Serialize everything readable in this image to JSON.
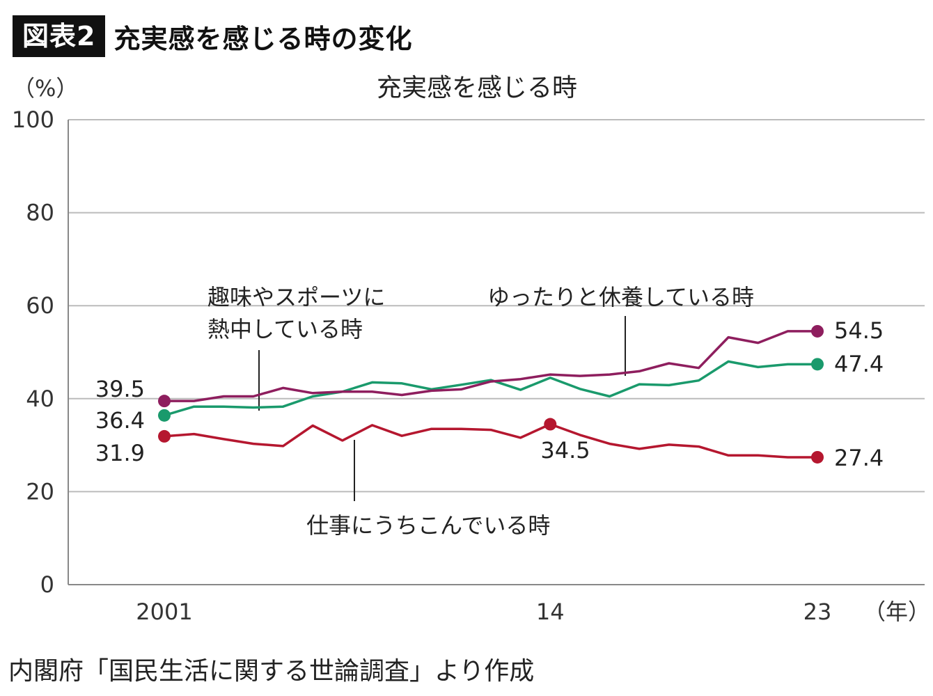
{
  "header": {
    "badge": "図表2",
    "title": "充実感を感じる時の変化"
  },
  "source": "内閣府「国民生活に関する世論調査」より作成",
  "chart_data": {
    "type": "line",
    "title": "充実感を感じる時",
    "ylabel": "（%）",
    "xlabel": "（年）",
    "ylim": [
      0,
      100
    ],
    "yticks": [
      "0",
      "20",
      "40",
      "60",
      "80",
      "100"
    ],
    "x_tick_labels": [
      "2001",
      "14",
      "23"
    ],
    "x_range": [
      2001,
      2023
    ],
    "grid": true,
    "colors": {
      "hobby": "#1a9a6c",
      "relax": "#8e1e5e",
      "work": "#b5172f"
    },
    "series": [
      {
        "key": "relax",
        "name": "ゆったりと休養している時",
        "x": [
          2001,
          2002,
          2003,
          2004,
          2005,
          2006,
          2007,
          2008,
          2009,
          2010,
          2011,
          2012,
          2013,
          2014,
          2015,
          2016,
          2017,
          2018,
          2019,
          2020,
          2021,
          2022,
          2023
        ],
        "values": [
          39.5,
          39.5,
          40.5,
          40.5,
          42.3,
          41.2,
          41.5,
          41.5,
          40.8,
          41.7,
          42.0,
          43.7,
          44.2,
          45.2,
          44.9,
          45.2,
          45.9,
          47.6,
          46.6,
          53.2,
          52.0,
          54.5,
          54.5
        ],
        "markers": [
          {
            "index": 0,
            "label": "39.5"
          },
          {
            "index": 22,
            "label": "54.5"
          }
        ]
      },
      {
        "key": "hobby",
        "name": "趣味やスポーツに熱中している時",
        "x": [
          2001,
          2002,
          2003,
          2004,
          2005,
          2006,
          2007,
          2008,
          2009,
          2010,
          2011,
          2012,
          2013,
          2014,
          2015,
          2016,
          2017,
          2018,
          2019,
          2020,
          2021,
          2022,
          2023
        ],
        "values": [
          36.4,
          38.3,
          38.3,
          38.1,
          38.3,
          40.5,
          41.5,
          43.5,
          43.3,
          42.0,
          43.0,
          44.0,
          41.9,
          44.5,
          42.1,
          40.5,
          43.1,
          42.9,
          43.9,
          48.0,
          46.8,
          47.4,
          47.4
        ],
        "markers": [
          {
            "index": 0,
            "label": "36.4"
          },
          {
            "index": 22,
            "label": "47.4"
          }
        ]
      },
      {
        "key": "work",
        "name": "仕事にうちこんでいる時",
        "x": [
          2001,
          2002,
          2003,
          2004,
          2005,
          2006,
          2007,
          2008,
          2009,
          2010,
          2011,
          2012,
          2013,
          2014,
          2015,
          2016,
          2017,
          2018,
          2019,
          2020,
          2021,
          2022,
          2023
        ],
        "values": [
          31.9,
          32.4,
          31.3,
          30.3,
          29.8,
          34.2,
          31.0,
          34.3,
          32.0,
          33.5,
          33.5,
          33.3,
          31.6,
          34.5,
          32.2,
          30.3,
          29.2,
          30.1,
          29.7,
          27.8,
          27.8,
          27.4,
          27.4
        ],
        "markers": [
          {
            "index": 0,
            "label": "31.9"
          },
          {
            "index": 13,
            "label": "34.5"
          },
          {
            "index": 22,
            "label": "27.4"
          }
        ]
      }
    ],
    "annotations": {
      "hobby_lines": [
        "趣味やスポーツに",
        "熱中している時"
      ],
      "relax_line": "ゆったりと休養している時",
      "work_line": "仕事にうちこんでいる時"
    }
  }
}
